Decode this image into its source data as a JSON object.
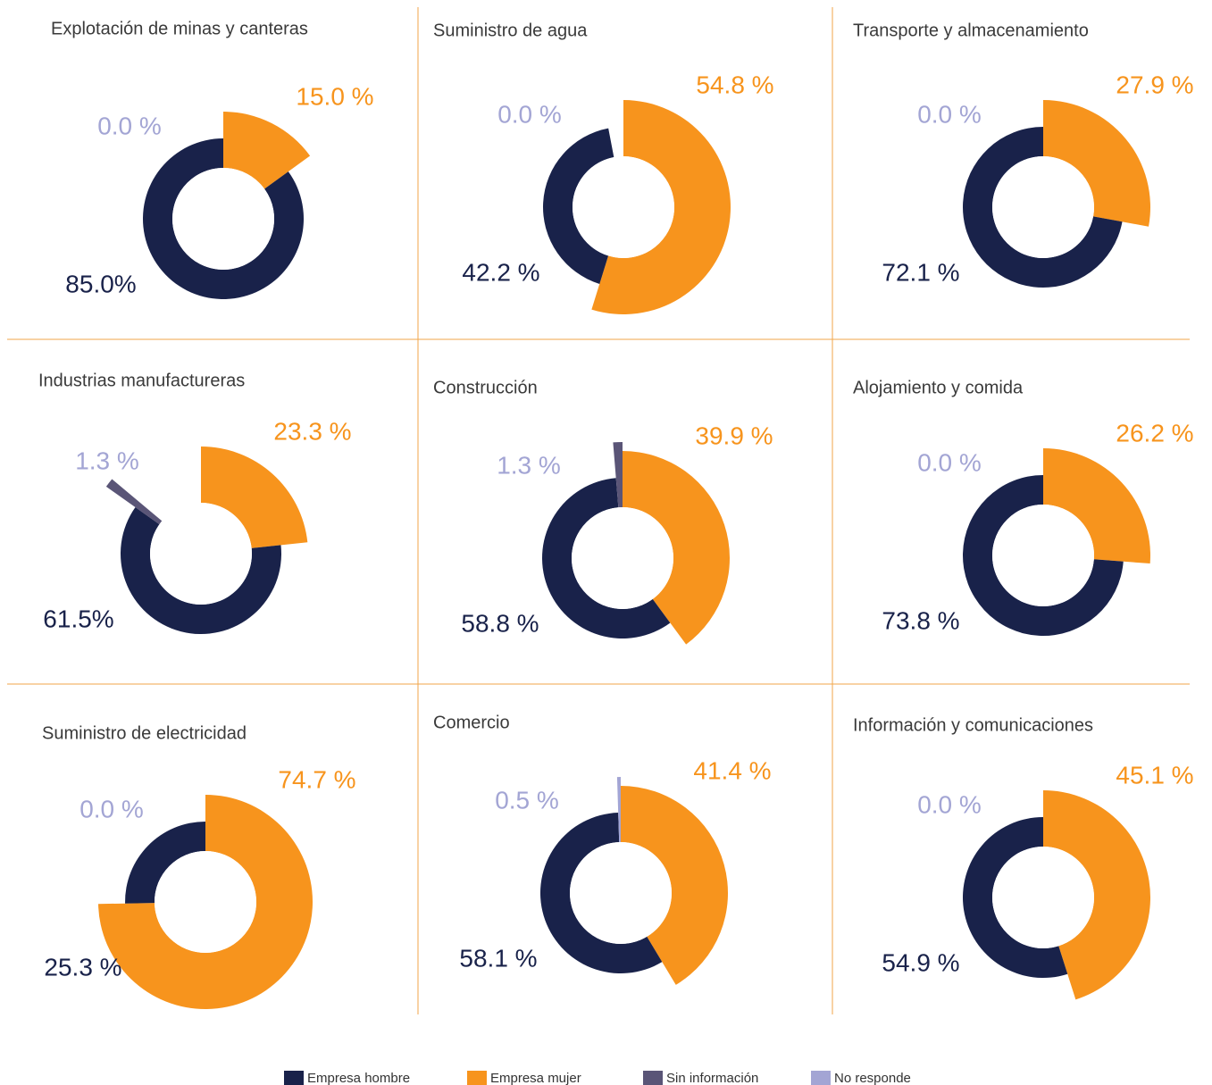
{
  "legend": [
    {
      "name": "Empresa hombre",
      "color": "#19224a"
    },
    {
      "name": "Empresa mujer",
      "color": "#f7941d"
    },
    {
      "name": "Sin información",
      "color": "#5a5577"
    },
    {
      "name": "No responde",
      "color": "#a3a5d4"
    }
  ],
  "chart_data": [
    {
      "type": "pie",
      "title": "Explotación de minas y canteras",
      "values": [
        85.0,
        15.0,
        0.0,
        null
      ],
      "value_labels": [
        "85.0%",
        "15.0 %",
        "0.0 %",
        null
      ]
    },
    {
      "type": "pie",
      "title": "Suministro de agua",
      "values": [
        42.2,
        54.8,
        0.0,
        null
      ],
      "value_labels": [
        "42.2 %",
        "54.8 %",
        "0.0 %",
        null
      ]
    },
    {
      "type": "pie",
      "title": "Transporte y almacenamiento",
      "values": [
        72.1,
        27.9,
        0.0,
        null
      ],
      "value_labels": [
        "72.1 %",
        "27.9 %",
        "0.0 %",
        null
      ]
    },
    {
      "type": "pie",
      "title": "Industrias manufactureras",
      "values": [
        61.5,
        23.3,
        1.3,
        null
      ],
      "value_labels": [
        "61.5%",
        "23.3 %",
        "1.3 %",
        null
      ]
    },
    {
      "type": "pie",
      "title": "Construcción",
      "values": [
        58.8,
        39.9,
        1.3,
        null
      ],
      "value_labels": [
        "58.8 %",
        "39.9 %",
        "1.3 %",
        null
      ]
    },
    {
      "type": "pie",
      "title": "Alojamiento y comida",
      "values": [
        73.8,
        26.2,
        0.0,
        null
      ],
      "value_labels": [
        "73.8 %",
        "26.2 %",
        "0.0 %",
        null
      ]
    },
    {
      "type": "pie",
      "title": "Suministro de electricidad",
      "values": [
        25.3,
        74.7,
        0.0,
        null
      ],
      "value_labels": [
        "25.3 %",
        "74.7 %",
        "0.0 %",
        null
      ]
    },
    {
      "type": "pie",
      "title": "Comercio",
      "values": [
        58.1,
        41.4,
        null,
        0.5
      ],
      "value_labels": [
        "58.1 %",
        "41.4 %",
        null,
        "0.5 %"
      ]
    },
    {
      "type": "pie",
      "title": "Información y comunicaciones",
      "values": [
        54.9,
        45.1,
        0.0,
        null
      ],
      "value_labels": [
        "54.9 %",
        "45.1 %",
        "0.0 %",
        null
      ]
    }
  ]
}
